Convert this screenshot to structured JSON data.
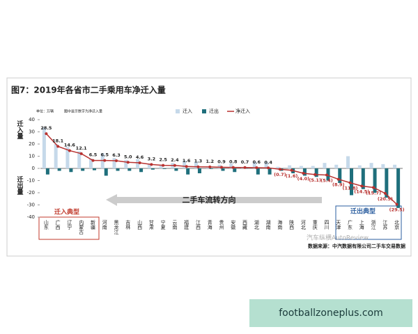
{
  "chart_data": {
    "type": "bar-line",
    "title": "图7：2019年各省市二手乘用车净迁入量",
    "unit_label": "单位：万辆",
    "subtitle": "图中显示数字为净迁入量",
    "ylabel_top": "迁入量",
    "ylabel_bottom": "迁出量",
    "categories": [
      "山东",
      "广西",
      "辽宁",
      "内蒙古",
      "新疆",
      "河南",
      "黑龙江",
      "吉林",
      "山西",
      "甘肃",
      "宁夏",
      "云南",
      "福建",
      "江西",
      "青海",
      "贵州",
      "安徽",
      "西藏",
      "湖北",
      "湖南",
      "海南",
      "陕西",
      "河北",
      "重庆",
      "四川",
      "天津",
      "广东",
      "上海",
      "浙江",
      "江苏",
      "北京"
    ],
    "series": [
      {
        "name": "迁入",
        "color": "#c6d9ea",
        "kind": "bar",
        "values": [
          33.5,
          20,
          17.5,
          14,
          8,
          12.5,
          8.5,
          7,
          7.5,
          4,
          3,
          4.5,
          6.5,
          5.5,
          1.5,
          3,
          4,
          1,
          5.5,
          5.5,
          1.3,
          2.5,
          2,
          2,
          4.5,
          3,
          10,
          2.5,
          4.5,
          3.5,
          3
        ]
      },
      {
        "name": "迁出",
        "color": "#1f6f7c",
        "kind": "bar",
        "values": [
          -5,
          -2,
          -3,
          -2,
          -1.5,
          -6,
          -2,
          -2,
          -3,
          -1,
          -0.5,
          -2,
          -5,
          -4,
          -0.5,
          -2,
          -3,
          -0.2,
          -5,
          -5,
          -2,
          -4,
          -6,
          -7,
          -10,
          -12,
          -22,
          -17,
          -20,
          -24,
          -32.5
        ]
      },
      {
        "name": "净迁入",
        "color": "#b8312f",
        "kind": "line",
        "values": [
          28.5,
          18.1,
          14.6,
          12.1,
          6.5,
          6.5,
          6.3,
          5.0,
          4.6,
          3.2,
          2.5,
          2.4,
          1.6,
          1.3,
          1.2,
          0.9,
          0.8,
          0.7,
          0.6,
          0.4,
          -0.7,
          -1.6,
          -4.0,
          -5.1,
          -5.4,
          -8.9,
          -11.8,
          -14.5,
          -15.7,
          -20.5,
          -29.5
        ],
        "value_labels": [
          "28.5",
          "18.1",
          "14.6",
          "12.1",
          "6.5",
          "6.5",
          "6.3",
          "5.0",
          "4.6",
          "3.2",
          "2.5",
          "2.4",
          "1.6",
          "1.3",
          "1.2",
          "0.9",
          "0.8",
          "0.7",
          "0.6",
          "0.4",
          "(0.7)",
          "(1.6)",
          "(4.0)",
          "(5.1)",
          "(5.4)",
          "(8.9)",
          "(11.8)",
          "(14.5)",
          "(15.7)",
          "(20.5)",
          "(29.5)"
        ]
      }
    ],
    "ylim": [
      -40,
      40
    ],
    "yticks": [
      -40,
      -30,
      -20,
      -10,
      0,
      10,
      20,
      30,
      40
    ],
    "annotations": {
      "inflow_typical": "迁入典型",
      "outflow_typical": "迁出典型",
      "direction": "二手车流转方向"
    },
    "source": "数据来源：中汽数据有限公司二手车交易数据"
  },
  "watermark": "汽车纵横AutoReview",
  "footer": "footballzoneplus.com"
}
